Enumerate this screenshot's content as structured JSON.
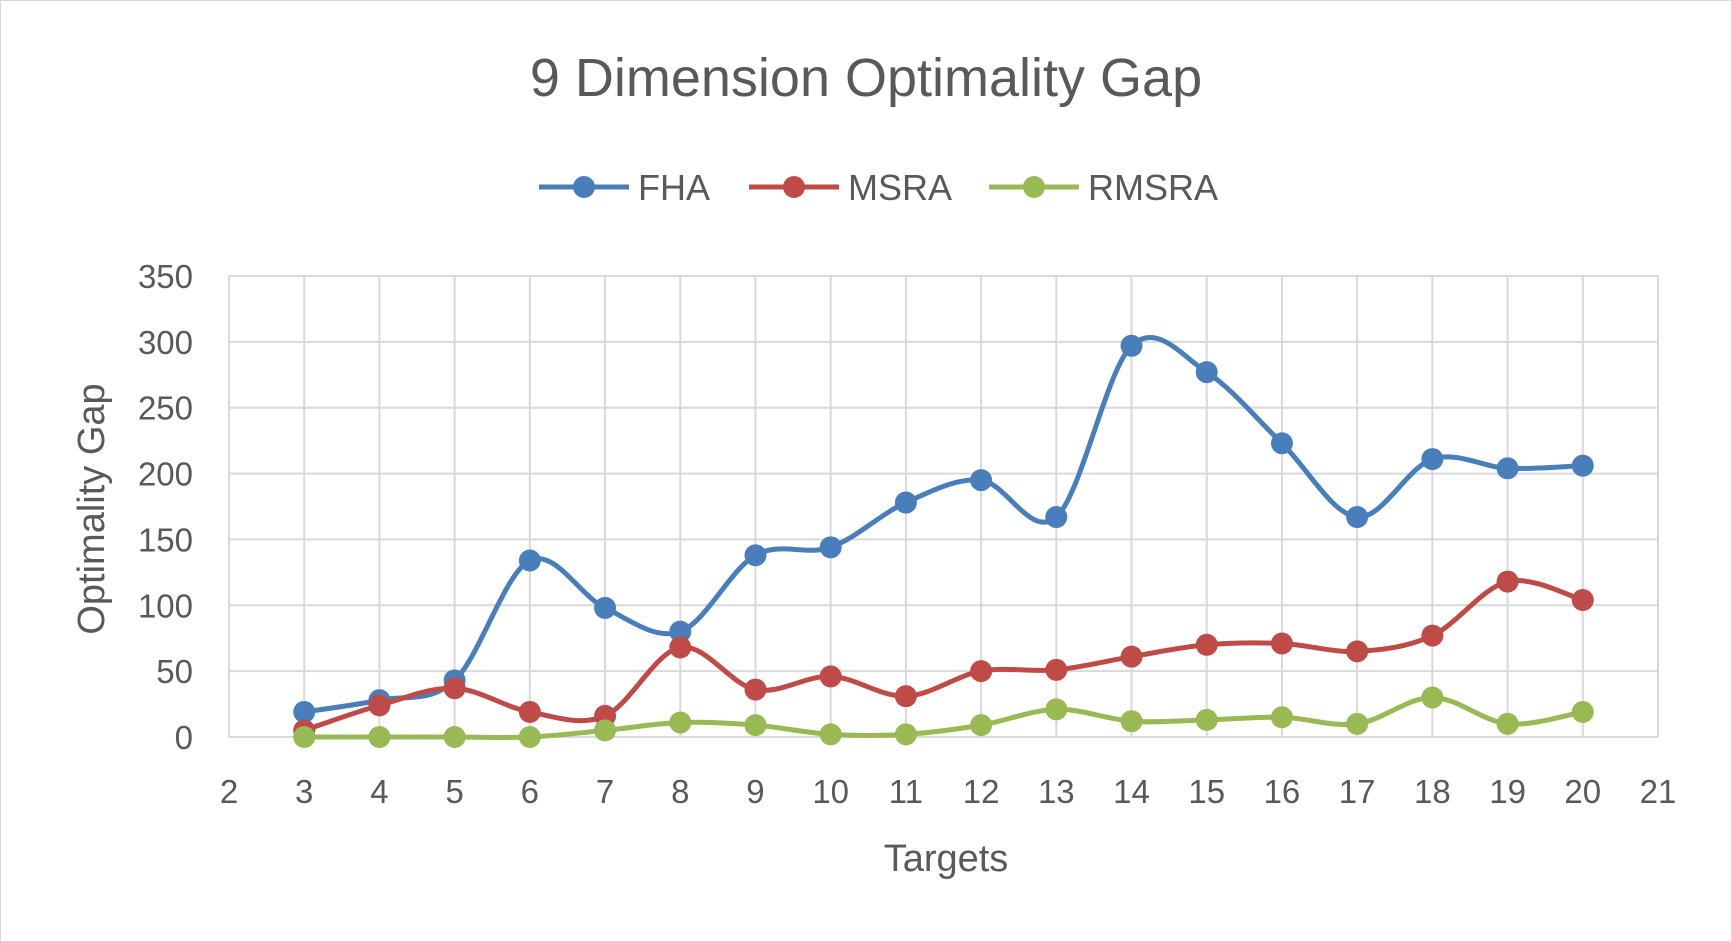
{
  "chart_data": {
    "type": "line",
    "title": "9 Dimension Optimality Gap",
    "xlabel": "Targets",
    "ylabel": "Optimality Gap",
    "xlim": [
      2,
      21
    ],
    "ylim": [
      0,
      350
    ],
    "x_ticks": [
      2,
      3,
      4,
      5,
      6,
      7,
      8,
      9,
      10,
      11,
      12,
      13,
      14,
      15,
      16,
      17,
      18,
      19,
      20,
      21
    ],
    "y_ticks": [
      0,
      50,
      100,
      150,
      200,
      250,
      300,
      350
    ],
    "grid": true,
    "smooth": true,
    "legend_position": "top",
    "x": [
      3,
      4,
      5,
      6,
      7,
      8,
      9,
      10,
      11,
      12,
      13,
      14,
      15,
      16,
      17,
      18,
      19,
      20
    ],
    "series": [
      {
        "name": "FHA",
        "color": "#4a7ebb",
        "values": [
          19,
          28,
          43,
          134,
          98,
          80,
          138,
          144,
          178,
          195,
          167,
          297,
          277,
          223,
          167,
          211,
          204,
          206
        ]
      },
      {
        "name": "MSRA",
        "color": "#be4b48",
        "values": [
          5,
          24,
          37,
          19,
          16,
          68,
          36,
          46,
          31,
          50,
          51,
          61,
          70,
          71,
          65,
          77,
          118,
          104
        ]
      },
      {
        "name": "RMSRA",
        "color": "#98b954",
        "values": [
          0,
          0,
          0,
          0,
          5,
          11,
          9,
          2,
          2,
          9,
          21,
          12,
          13,
          15,
          10,
          30,
          10,
          19
        ]
      }
    ]
  }
}
